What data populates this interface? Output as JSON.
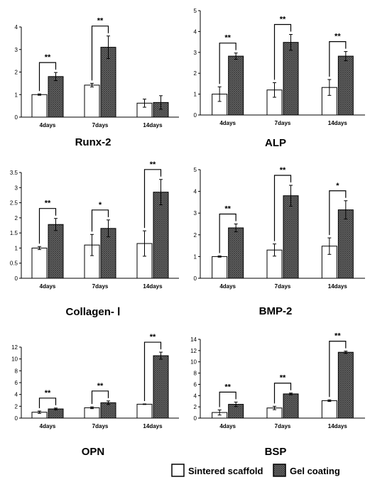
{
  "legend": {
    "series": [
      {
        "name": "Sintered scaffold",
        "fill": "#ffffff"
      },
      {
        "name": "Gel coating",
        "fill": "hatched-dark"
      }
    ]
  },
  "chart_data": [
    {
      "type": "bar",
      "title": "Runx-2",
      "categories": [
        "4days",
        "7days",
        "14days"
      ],
      "ylim": [
        0,
        4
      ],
      "yticks": [
        "0",
        "1",
        "2",
        "3",
        "4"
      ],
      "series": [
        {
          "name": "Sintered scaffold",
          "values": [
            1.0,
            1.42,
            0.62
          ],
          "errors": [
            0.03,
            0.08,
            0.18
          ]
        },
        {
          "name": "Gel coating",
          "values": [
            1.8,
            3.1,
            0.65
          ],
          "errors": [
            0.18,
            0.5,
            0.3
          ]
        }
      ],
      "significance": [
        "**",
        "**",
        ""
      ]
    },
    {
      "type": "bar",
      "title": "ALP",
      "categories": [
        "4days",
        "7days",
        "14days"
      ],
      "ylim": [
        0,
        5
      ],
      "yticks": [
        "0",
        "1",
        "2",
        "3",
        "4",
        "5"
      ],
      "series": [
        {
          "name": "Sintered scaffold",
          "values": [
            1.0,
            1.2,
            1.32
          ],
          "errors": [
            0.35,
            0.35,
            0.38
          ]
        },
        {
          "name": "Gel coating",
          "values": [
            2.82,
            3.48,
            2.82
          ],
          "errors": [
            0.15,
            0.38,
            0.22
          ]
        }
      ],
      "significance": [
        "**",
        "**",
        "**"
      ]
    },
    {
      "type": "bar",
      "title": "Collagen- Ⅰ",
      "categories": [
        "4days",
        "7days",
        "14days"
      ],
      "ylim": [
        0,
        3.5
      ],
      "yticks": [
        "0",
        "0.5",
        "1",
        "1.5",
        "2",
        "2.5",
        "3",
        "3.5"
      ],
      "series": [
        {
          "name": "Sintered scaffold",
          "values": [
            1.0,
            1.1,
            1.15
          ],
          "errors": [
            0.05,
            0.35,
            0.42
          ]
        },
        {
          "name": "Gel coating",
          "values": [
            1.78,
            1.65,
            2.85
          ],
          "errors": [
            0.2,
            0.28,
            0.42
          ]
        }
      ],
      "significance": [
        "**",
        "*",
        "**"
      ]
    },
    {
      "type": "bar",
      "title": "BMP-2",
      "categories": [
        "4days",
        "7days",
        "14days"
      ],
      "ylim": [
        0,
        5
      ],
      "yticks": [
        "0",
        "1",
        "2",
        "3",
        "4",
        "5"
      ],
      "series": [
        {
          "name": "Sintered scaffold",
          "values": [
            1.0,
            1.3,
            1.48
          ],
          "errors": [
            0.03,
            0.28,
            0.38
          ]
        },
        {
          "name": "Gel coating",
          "values": [
            2.32,
            3.8,
            3.15
          ],
          "errors": [
            0.18,
            0.48,
            0.42
          ]
        }
      ],
      "significance": [
        "**",
        "**",
        "*"
      ]
    },
    {
      "type": "bar",
      "title": "OPN",
      "categories": [
        "4days",
        "7days",
        "14days"
      ],
      "ylim": [
        0,
        12
      ],
      "yticks": [
        "0",
        "2",
        "4",
        "6",
        "8",
        "10",
        "12"
      ],
      "series": [
        {
          "name": "Sintered scaffold",
          "values": [
            1.0,
            1.75,
            2.35
          ],
          "errors": [
            0.2,
            0.15,
            0.05
          ]
        },
        {
          "name": "Gel coating",
          "values": [
            1.55,
            2.6,
            10.55
          ],
          "errors": [
            0.15,
            0.3,
            0.6
          ]
        }
      ],
      "significance": [
        "**",
        "**",
        "**"
      ]
    },
    {
      "type": "bar",
      "title": "BSP",
      "categories": [
        "4days",
        "7days",
        "14days"
      ],
      "ylim": [
        0,
        14
      ],
      "yticks": [
        "0",
        "2",
        "4",
        "6",
        "8",
        "10",
        "12",
        "14"
      ],
      "series": [
        {
          "name": "Sintered scaffold",
          "values": [
            1.0,
            1.8,
            3.1
          ],
          "errors": [
            0.45,
            0.3,
            0.15
          ]
        },
        {
          "name": "Gel coating",
          "values": [
            2.45,
            4.3,
            11.7
          ],
          "errors": [
            0.4,
            0.15,
            0.2
          ]
        }
      ],
      "significance": [
        "**",
        "**",
        "**"
      ]
    }
  ]
}
